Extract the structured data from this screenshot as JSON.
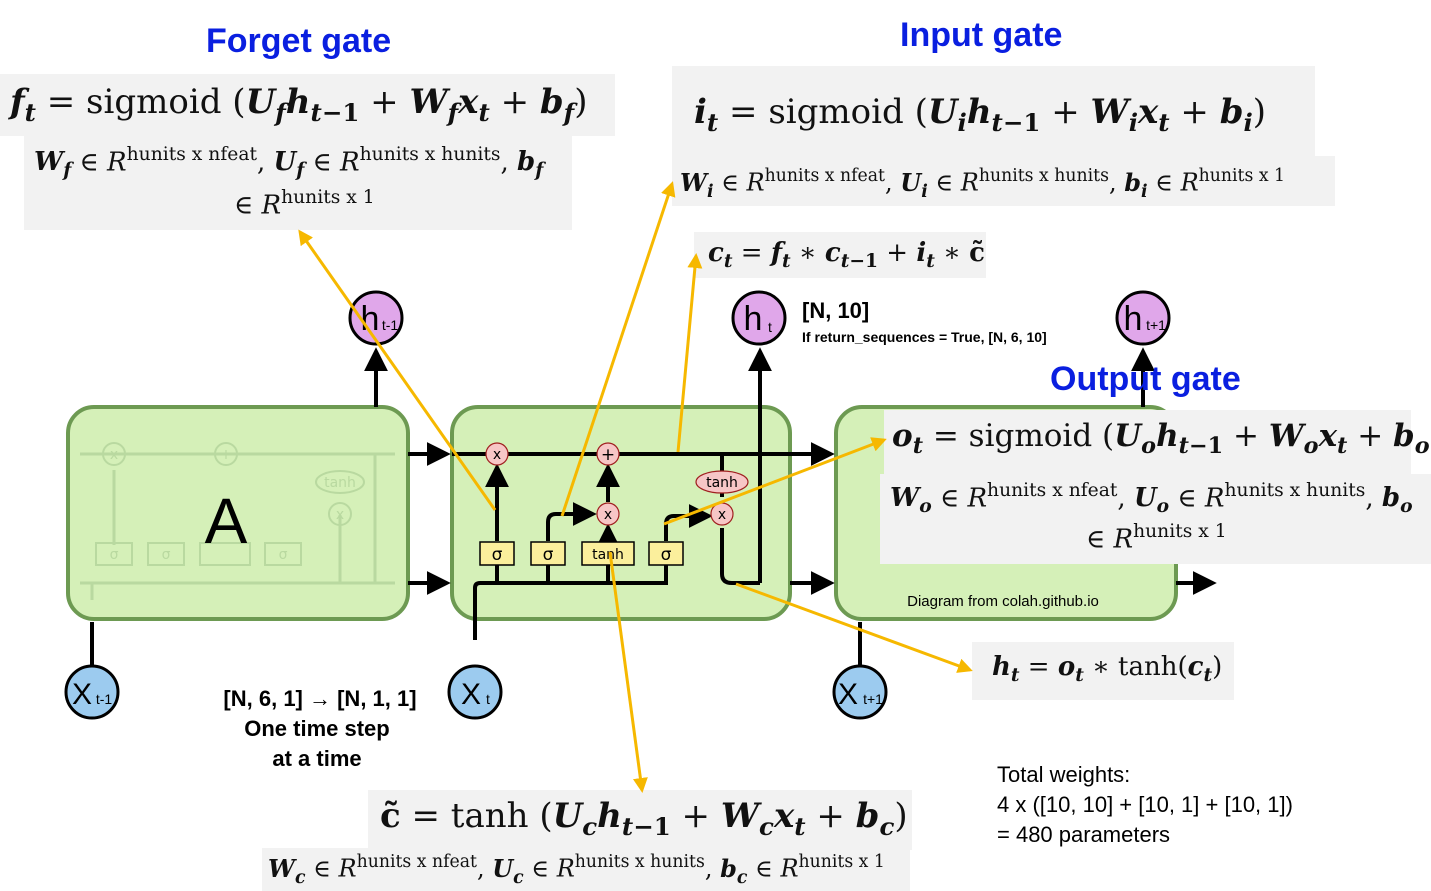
{
  "titles": {
    "forget": "Forget gate",
    "input": "Input gate",
    "output": "Output gate"
  },
  "formulas": {
    "forget_eq": "f_t = sigmoid (U_f h_{t−1} + W_f x_t + b_f)",
    "forget_dims_1": "W_f ∈ R^{hunits x nfeat}, U_f ∈ R^{hunits x hunits}, b_f",
    "forget_dims_2": "∈ R^{hunits x 1}",
    "input_eq": "i_t = sigmoid (U_i h_{t−1} + W_i x_t + b_i)",
    "input_dims": "W_i ∈ R^{hunits x nfeat}, U_i ∈ R^{hunits x hunits}, b_i ∈ R^{hunits x 1}",
    "cell_eq": "c_t = f_t ∗ c_{t−1} + i_t ∗ c̃",
    "output_eq": "o_t = sigmoid (U_o h_{t−1} + W_o x_t + b_o)",
    "output_dims_1": "W_o ∈ R^{hunits x nfeat}, U_o ∈ R^{hunits x hunits}, b_o",
    "output_dims_2": "∈ R^{hunits x 1}",
    "hidden_eq": "h_t = o_t ∗ tanh(c_t)",
    "cand_eq": "c̃ = tanh (U_c h_{t−1} + W_c x_t + b_c)",
    "cand_dims": "W_c ∈ R^{hunits x nfeat}, U_c ∈ R^{hunits x hunits}, b_c ∈ R^{hunits x 1}"
  },
  "diagram": {
    "block_label": "A",
    "credit": "Diagram from colah.github.io",
    "sigma": "σ",
    "tanh": "tanh",
    "times": "x",
    "plus": "+",
    "h_prev": {
      "main": "h",
      "sub": "t-1"
    },
    "h_cur": {
      "main": "h",
      "sub": "t"
    },
    "h_next": {
      "main": "h",
      "sub": "t+1"
    },
    "x_prev": {
      "main": "X",
      "sub": "t-1"
    },
    "x_cur": {
      "main": "X",
      "sub": "t"
    },
    "x_next": {
      "main": "X",
      "sub": "t+1"
    }
  },
  "notes": {
    "output_shape": "[N, 10]",
    "return_seq": "If return_sequences = True, [N, 6, 10]",
    "input_shape": "[N, 6, 1] →  [N, 1, 1]",
    "one_step_1": "One time step",
    "one_step_2": "at a time",
    "total_1": "Total weights:",
    "total_2": "4 x ([10, 10] + [10, 1] + [10, 1])",
    "total_3": "= 480 parameters"
  },
  "colors": {
    "cell_fill": "#d5f0b8",
    "cell_stroke": "#6d9a52",
    "gate_fill": "#fbef9c",
    "op_fill": "#f7c6c6",
    "h_node": "#e0a7ea",
    "x_node": "#9ccbef",
    "arrow": "#f6b800",
    "title_blue": "#0a1fe0"
  }
}
